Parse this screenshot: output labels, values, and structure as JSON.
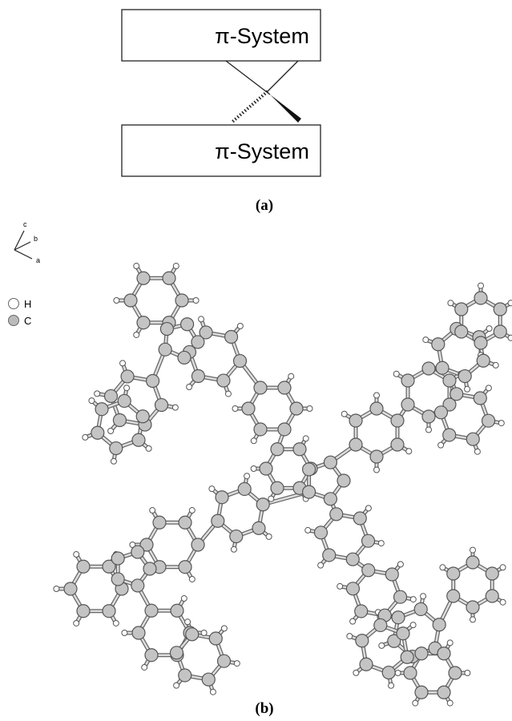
{
  "panel_a": {
    "boxes": [
      {
        "label": "π-System"
      },
      {
        "label": "π-System"
      }
    ],
    "caption": "(a)"
  },
  "panel_b": {
    "axes": [
      "c",
      "b",
      "a"
    ],
    "legend": [
      {
        "label": "H"
      },
      {
        "label": "C"
      }
    ],
    "caption": "(b)"
  }
}
